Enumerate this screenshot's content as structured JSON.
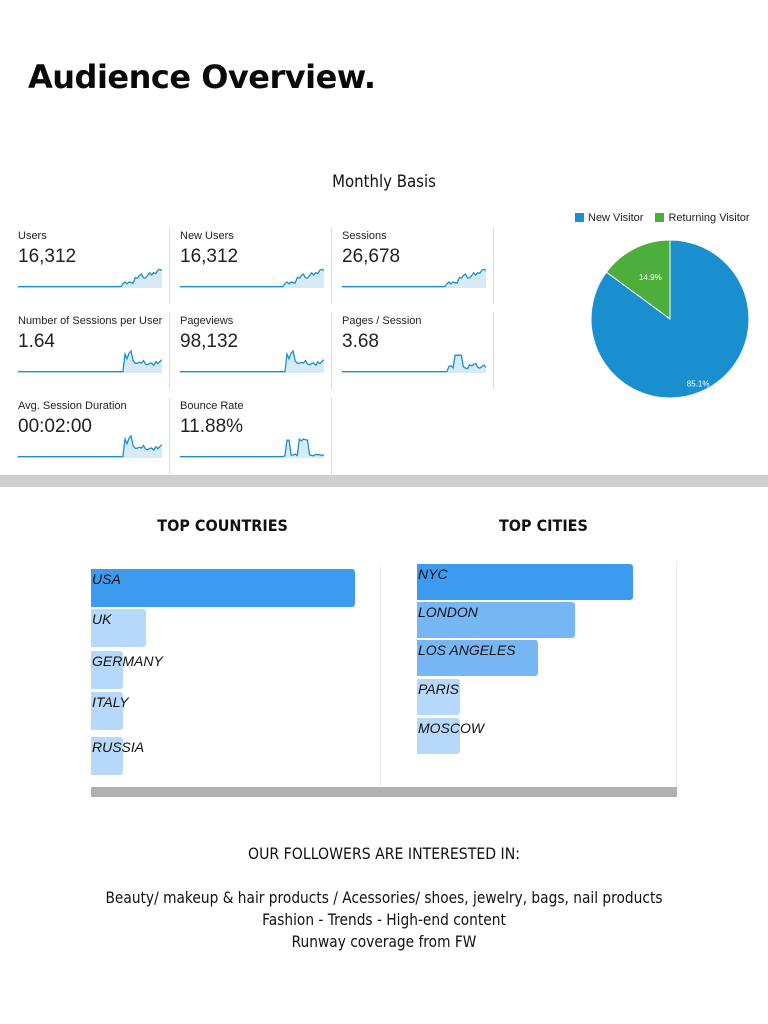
{
  "header": {
    "title": "Audience Overview.",
    "subtitle": "Monthly Basis"
  },
  "metrics": [
    {
      "label": "Users",
      "value": "16,312"
    },
    {
      "label": "New Users",
      "value": "16,312"
    },
    {
      "label": "Sessions",
      "value": "26,678"
    },
    {
      "label": "Number of Sessions per User",
      "value": "1.64"
    },
    {
      "label": "Pageviews",
      "value": "98,132"
    },
    {
      "label": "Pages / Session",
      "value": "3.68"
    },
    {
      "label": "Avg. Session Duration",
      "value": "00:02:00"
    },
    {
      "label": "Bounce Rate",
      "value": "11.88%"
    }
  ],
  "colors": {
    "new_visitor": "#1a8fcf",
    "returning_visitor": "#4caf3c",
    "sparkline": "#1a8fcf",
    "bar_dark": "#3d9bef",
    "bar_mid": "#76b6f5",
    "bar_light": "#b6d8fb"
  },
  "chart_data": [
    {
      "type": "pie",
      "legend": [
        "New Visitor",
        "Returning Visitor"
      ],
      "slices": [
        {
          "name": "New Visitor",
          "value": 85.1,
          "label": "85.1%"
        },
        {
          "name": "Returning Visitor",
          "value": 14.9,
          "label": "14.9%"
        }
      ],
      "legend_position": "top"
    },
    {
      "type": "bar",
      "orientation": "horizontal",
      "title": "TOP COUNTRIES",
      "categories": [
        "USA",
        "UK",
        "GERMANY",
        "ITALY",
        "RUSSIA"
      ],
      "values": [
        100,
        21,
        12,
        12,
        12
      ]
    },
    {
      "type": "bar",
      "orientation": "horizontal",
      "title": "TOP CITIES",
      "categories": [
        "NYC",
        "LONDON",
        "LOS ANGELES",
        "PARIS",
        "MOSCOW"
      ],
      "values": [
        100,
        73,
        56,
        20,
        20
      ]
    }
  ],
  "interests": {
    "title": "OUR FOLLOWERS ARE INTERESTED IN:",
    "lines": [
      "Beauty/ makeup & hair products / Acessories/ shoes, jewelry, bags, nail products",
      "Fashion - Trends - High-end content",
      "Runway coverage from FW"
    ]
  }
}
